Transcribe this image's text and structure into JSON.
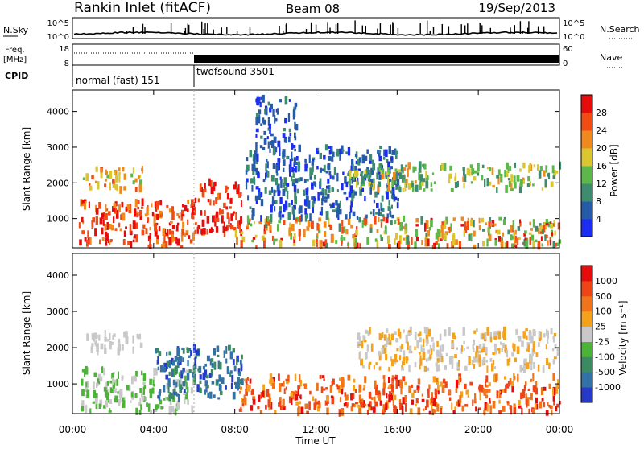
{
  "header": {
    "station": "Rankin Inlet (fitACF)",
    "beam": "Beam 08",
    "date": "19/Sep/2013"
  },
  "noise_panel": {
    "left_label": "N.Sky",
    "right_label": "N.Search",
    "left_ticks": [
      "10^5",
      "10^0"
    ],
    "right_ticks": [
      "10^5",
      "10^0"
    ]
  },
  "freq_panel": {
    "left_label_1": "Freq.",
    "left_label_2": "[MHz]",
    "right_label": "Nave",
    "left_ticks": [
      "18",
      "8"
    ],
    "right_ticks": [
      "60",
      "0"
    ]
  },
  "cpid_panel": {
    "label": "CPID",
    "modes": [
      {
        "name": "normal (fast) 151",
        "start_hour": 0,
        "end_hour": 6
      },
      {
        "name": "twofsound 3501",
        "start_hour": 6,
        "end_hour": 24
      }
    ]
  },
  "chart_data": [
    {
      "type": "heatmap",
      "title": "",
      "xlabel": "Time UT",
      "ylabel": "Slant Range [km]",
      "xlim": [
        0,
        24
      ],
      "ylim": [
        180,
        4600
      ],
      "x_ticks": [
        "00:00",
        "04:00",
        "08:00",
        "12:00",
        "16:00",
        "20:00",
        "00:00"
      ],
      "y_ticks": [
        "1000",
        "2000",
        "3000",
        "4000"
      ],
      "colorbar": {
        "label": "Power [dB]",
        "levels": [
          "4",
          "8",
          "12",
          "16",
          "20",
          "24",
          "28"
        ],
        "range": [
          0,
          30
        ],
        "colors": [
          "#1c2cf2",
          "#255ba8",
          "#3d8c6f",
          "#5cb84a",
          "#dcc62f",
          "#f08a1f",
          "#f24c14",
          "#e60c0c"
        ]
      },
      "scatter_regions": [
        {
          "t0": 0.3,
          "t1": 6.0,
          "r0": 200,
          "r1": 1500,
          "values": [
            20,
            30
          ]
        },
        {
          "t0": 0.5,
          "t1": 3.5,
          "r0": 1800,
          "r1": 2400,
          "values": [
            14,
            24
          ]
        },
        {
          "t0": 6.0,
          "t1": 8.3,
          "r0": 600,
          "r1": 2050,
          "values": [
            22,
            30
          ]
        },
        {
          "t0": 8.0,
          "t1": 24.0,
          "r0": 200,
          "r1": 1000,
          "values": [
            10,
            28
          ]
        },
        {
          "t0": 8.5,
          "t1": 16.0,
          "r0": 1000,
          "r1": 3000,
          "values": [
            2,
            10
          ]
        },
        {
          "t0": 13.5,
          "t1": 24.0,
          "r0": 1800,
          "r1": 2500,
          "values": [
            8,
            20
          ]
        },
        {
          "t0": 9.0,
          "t1": 11.0,
          "r0": 3000,
          "r1": 4400,
          "values": [
            2,
            8
          ]
        }
      ]
    },
    {
      "type": "heatmap",
      "title": "",
      "xlabel": "Time UT",
      "ylabel": "Slant Range [km]",
      "xlim": [
        0,
        24
      ],
      "ylim": [
        180,
        4600
      ],
      "x_ticks": [
        "00:00",
        "04:00",
        "08:00",
        "12:00",
        "16:00",
        "20:00",
        "00:00"
      ],
      "y_ticks": [
        "1000",
        "2000",
        "3000",
        "4000"
      ],
      "colorbar": {
        "label": "Velocity [m s^-1]",
        "levels": [
          "1000",
          "500",
          "100",
          "25",
          "-25",
          "-100",
          "-500",
          "-1000"
        ],
        "colors": [
          "#2639c9",
          "#3272a6",
          "#3a8a62",
          "#4bb335",
          "#c8c8c8",
          "#f4a21c",
          "#f0741a",
          "#ee4416",
          "#e60c0c"
        ]
      },
      "scatter_regions": [
        {
          "t0": 0.3,
          "t1": 6.0,
          "r0": 200,
          "r1": 1400,
          "values": [
            3,
            4
          ]
        },
        {
          "t0": 0.5,
          "t1": 3.5,
          "r0": 1900,
          "r1": 2400,
          "values": [
            4,
            4
          ]
        },
        {
          "t0": 4.0,
          "t1": 8.3,
          "r0": 600,
          "r1": 2000,
          "values": [
            0,
            2
          ]
        },
        {
          "t0": 8.2,
          "t1": 24.0,
          "r0": 200,
          "r1": 1200,
          "values": [
            5,
            8
          ]
        },
        {
          "t0": 14.0,
          "t1": 24.0,
          "r0": 1400,
          "r1": 2500,
          "values": [
            4,
            5
          ]
        }
      ]
    }
  ]
}
